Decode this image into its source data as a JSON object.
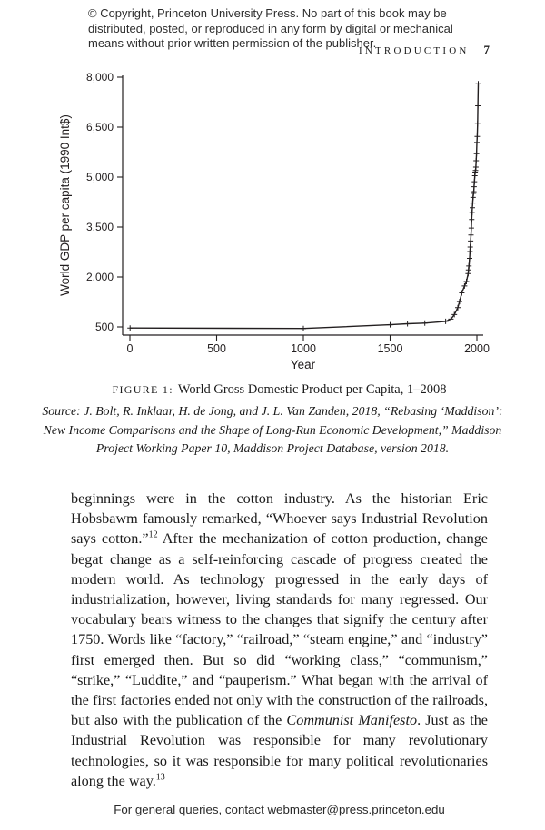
{
  "page": {
    "copyright_notice": "© Copyright, Princeton University Press. No part of this book may be distributed, posted, or reproduced in any form by digital or mechanical means without prior written permission of the publisher.",
    "running_header": "INTRODUCTION",
    "page_number": "7",
    "footer": "For general queries, contact webmaster@press.princeton.edu"
  },
  "figure": {
    "caption_label": "FIGURE 1:",
    "caption_title": "World Gross Domestic Product per Capita, 1–2008",
    "source_text": "Source: J. Bolt, R. Inklaar, H. de Jong, and J. L. Van Zanden, 2018, “Rebasing ‘Maddison’: New Income Comparisons and the Shape of Long-Run Economic Development,” Maddison Project Working Paper 10, Maddison Project Database, version 2018."
  },
  "chart_data": {
    "type": "line",
    "title": "",
    "xlabel": "Year",
    "ylabel": "World GDP per capita (1990 Int$)",
    "xlim": [
      0,
      2000
    ],
    "ylim": [
      500,
      8000
    ],
    "grid": false,
    "legend": false,
    "marker": "+",
    "line_color": "#231f20",
    "x_ticks": [
      {
        "v": 0,
        "label": "0"
      },
      {
        "v": 500,
        "label": "500"
      },
      {
        "v": 1000,
        "label": "1000"
      },
      {
        "v": 1500,
        "label": "1500"
      },
      {
        "v": 2000,
        "label": "2000"
      }
    ],
    "y_ticks": [
      {
        "v": 500,
        "label": "500"
      },
      {
        "v": 2000,
        "label": "2,000"
      },
      {
        "v": 3500,
        "label": "3,500"
      },
      {
        "v": 5000,
        "label": "5,000"
      },
      {
        "v": 6500,
        "label": "6,500"
      },
      {
        "v": 8000,
        "label": "8,000"
      }
    ],
    "points": [
      [
        1,
        467
      ],
      [
        1000,
        453
      ],
      [
        1500,
        566
      ],
      [
        1600,
        596
      ],
      [
        1700,
        615
      ],
      [
        1820,
        666
      ],
      [
        1850,
        735
      ],
      [
        1870,
        870
      ],
      [
        1890,
        1080
      ],
      [
        1900,
        1261
      ],
      [
        1913,
        1524
      ],
      [
        1929,
        1729
      ],
      [
        1940,
        1864
      ],
      [
        1950,
        2104
      ],
      [
        1952,
        2210
      ],
      [
        1954,
        2330
      ],
      [
        1956,
        2450
      ],
      [
        1958,
        2560
      ],
      [
        1960,
        2764
      ],
      [
        1962,
        2900
      ],
      [
        1964,
        3080
      ],
      [
        1966,
        3260
      ],
      [
        1968,
        3470
      ],
      [
        1970,
        3725
      ],
      [
        1972,
        3940
      ],
      [
        1974,
        4080
      ],
      [
        1976,
        4220
      ],
      [
        1978,
        4390
      ],
      [
        1980,
        4511
      ],
      [
        1982,
        4560
      ],
      [
        1984,
        4710
      ],
      [
        1986,
        4860
      ],
      [
        1988,
        5040
      ],
      [
        1990,
        5149
      ],
      [
        1992,
        5200
      ],
      [
        1994,
        5300
      ],
      [
        1996,
        5490
      ],
      [
        1998,
        5700
      ],
      [
        2000,
        6038
      ],
      [
        2002,
        6220
      ],
      [
        2004,
        6600
      ],
      [
        2006,
        7140
      ],
      [
        2008,
        7800
      ]
    ]
  },
  "body": {
    "paragraph": [
      {
        "style": "normal",
        "text": "beginnings were in the cotton industry. As the historian Eric Hobsbawm famously remarked, “Whoever says Industrial Revolution says cotton.”"
      },
      {
        "style": "sup",
        "text": "12"
      },
      {
        "style": "normal",
        "text": " After the mechanization of cotton production, change begat change as a self-reinforcing cascade of progress created the modern world. As technology progressed in the early days of industrialization, however, living standards for many regressed. Our vocabulary bears witness to the changes that signify the century after 1750. Words like “factory,” “railroad,” “steam engine,” and “industry” first emerged then. But so did “working class,” “communism,” “strike,” “Luddite,” and “pauperism.” What began with the arrival of the first factories ended not only with the construction of the railroads, but also with the publication of the "
      },
      {
        "style": "italic",
        "text": "Communist Manifesto"
      },
      {
        "style": "normal",
        "text": ". Just as the Industrial Revolution was responsible for many revolutionary technologies, so it was responsible for many political revolutionaries along the way."
      },
      {
        "style": "sup",
        "text": "13"
      }
    ]
  }
}
